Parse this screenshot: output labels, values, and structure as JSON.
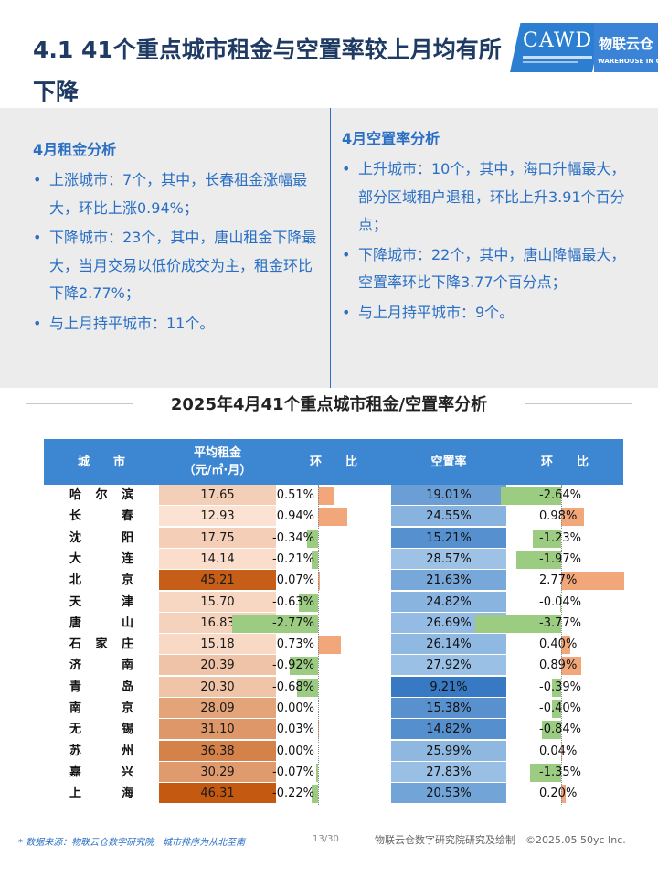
{
  "page": {
    "title": "4.1 41个重点城市租金与空置率较上月均有所下降",
    "page_number": "13/30"
  },
  "logo": {
    "cawd": "CAWD",
    "wl_cn": "物联云仓",
    "wl_en": "WAREHOUSE IN CLOUD"
  },
  "rent_analysis": {
    "title": "4月租金分析",
    "bullets": [
      "上涨城市：7个，其中，长春租金涨幅最大，环比上涨0.94%；",
      "下降城市：23个，其中，唐山租金下降最大，当月交易以低价成交为主，租金环比下降2.77%；",
      "与上月持平城市：11个。"
    ]
  },
  "vacancy_analysis": {
    "title": "4月空置率分析",
    "bullets": [
      "上升城市：10个，其中，海口升幅最大，部分区域租户退租，环比上升3.91个百分点；",
      "下降城市：22个，其中，唐山降幅最大，空置率环比下降3.77个百分点；",
      "与上月持平城市：9个。"
    ]
  },
  "table": {
    "title": "2025年4月41个重点城市租金/空置率分析",
    "headers": {
      "city": "城　　市",
      "rent_line1": "平均租金",
      "rent_line2": "（元/㎡·月）",
      "rent_chg": "环　　比",
      "vacancy": "空置率",
      "vac_chg": "环　　比"
    },
    "colors": {
      "header": "#3c86d2",
      "bar_positive": "#f2a77a",
      "bar_negative": "#9ccc82"
    }
  },
  "chart_data": {
    "type": "table",
    "columns": [
      "城市",
      "平均租金（元/㎡·月）",
      "租金环比",
      "空置率",
      "空置率环比"
    ],
    "rows": [
      {
        "city": "哈尔滨",
        "rent": 17.65,
        "rent_text": "17.65",
        "rent_chg": 0.51,
        "rent_chg_text": "0.51%",
        "vac": 19.01,
        "vac_text": "19.01%",
        "vac_chg": -2.64,
        "vac_chg_text": "-2.64%"
      },
      {
        "city": "长春",
        "rent": 12.93,
        "rent_text": "12.93",
        "rent_chg": 0.94,
        "rent_chg_text": "0.94%",
        "vac": 24.55,
        "vac_text": "24.55%",
        "vac_chg": 0.98,
        "vac_chg_text": "0.98%"
      },
      {
        "city": "沈阳",
        "rent": 17.75,
        "rent_text": "17.75",
        "rent_chg": -0.34,
        "rent_chg_text": "-0.34%",
        "vac": 15.21,
        "vac_text": "15.21%",
        "vac_chg": -1.23,
        "vac_chg_text": "-1.23%"
      },
      {
        "city": "大连",
        "rent": 14.14,
        "rent_text": "14.14",
        "rent_chg": -0.21,
        "rent_chg_text": "-0.21%",
        "vac": 28.57,
        "vac_text": "28.57%",
        "vac_chg": -1.97,
        "vac_chg_text": "-1.97%"
      },
      {
        "city": "北京",
        "rent": 45.21,
        "rent_text": "45.21",
        "rent_chg": 0.07,
        "rent_chg_text": "0.07%",
        "vac": 21.63,
        "vac_text": "21.63%",
        "vac_chg": 2.77,
        "vac_chg_text": "2.77%"
      },
      {
        "city": "天津",
        "rent": 15.7,
        "rent_text": "15.70",
        "rent_chg": -0.63,
        "rent_chg_text": "-0.63%",
        "vac": 24.82,
        "vac_text": "24.82%",
        "vac_chg": -0.04,
        "vac_chg_text": "-0.04%"
      },
      {
        "city": "唐山",
        "rent": 16.83,
        "rent_text": "16.83",
        "rent_chg": -2.77,
        "rent_chg_text": "-2.77%",
        "vac": 26.69,
        "vac_text": "26.69%",
        "vac_chg": -3.77,
        "vac_chg_text": "-3.77%"
      },
      {
        "city": "石家庄",
        "rent": 15.18,
        "rent_text": "15.18",
        "rent_chg": 0.73,
        "rent_chg_text": "0.73%",
        "vac": 26.14,
        "vac_text": "26.14%",
        "vac_chg": 0.4,
        "vac_chg_text": "0.40%"
      },
      {
        "city": "济南",
        "rent": 20.39,
        "rent_text": "20.39",
        "rent_chg": -0.92,
        "rent_chg_text": "-0.92%",
        "vac": 27.92,
        "vac_text": "27.92%",
        "vac_chg": 0.89,
        "vac_chg_text": "0.89%"
      },
      {
        "city": "青岛",
        "rent": 20.3,
        "rent_text": "20.30",
        "rent_chg": -0.68,
        "rent_chg_text": "-0.68%",
        "vac": 9.21,
        "vac_text": "9.21%",
        "vac_chg": -0.39,
        "vac_chg_text": "-0.39%"
      },
      {
        "city": "南京",
        "rent": 28.09,
        "rent_text": "28.09",
        "rent_chg": 0.0,
        "rent_chg_text": "0.00%",
        "vac": 15.38,
        "vac_text": "15.38%",
        "vac_chg": -0.4,
        "vac_chg_text": "-0.40%"
      },
      {
        "city": "无锡",
        "rent": 31.1,
        "rent_text": "31.10",
        "rent_chg": 0.03,
        "rent_chg_text": "0.03%",
        "vac": 14.82,
        "vac_text": "14.82%",
        "vac_chg": -0.84,
        "vac_chg_text": "-0.84%"
      },
      {
        "city": "苏州",
        "rent": 36.38,
        "rent_text": "36.38",
        "rent_chg": 0.0,
        "rent_chg_text": "0.00%",
        "vac": 25.99,
        "vac_text": "25.99%",
        "vac_chg": 0.04,
        "vac_chg_text": "0.04%"
      },
      {
        "city": "嘉兴",
        "rent": 30.29,
        "rent_text": "30.29",
        "rent_chg": -0.07,
        "rent_chg_text": "-0.07%",
        "vac": 27.83,
        "vac_text": "27.83%",
        "vac_chg": -1.35,
        "vac_chg_text": "-1.35%"
      },
      {
        "city": "上海",
        "rent": 46.31,
        "rent_text": "46.31",
        "rent_chg": -0.22,
        "rent_chg_text": "-0.22%",
        "vac": 20.53,
        "vac_text": "20.53%",
        "vac_chg": 0.2,
        "vac_chg_text": "0.20%"
      }
    ]
  },
  "footer": {
    "source": "* 数据来源：物联云仓数字研究院　城市排序为从北至南",
    "credit": "物联云仓数字研究院研究及绘制　©2025.05 50yc Inc."
  }
}
